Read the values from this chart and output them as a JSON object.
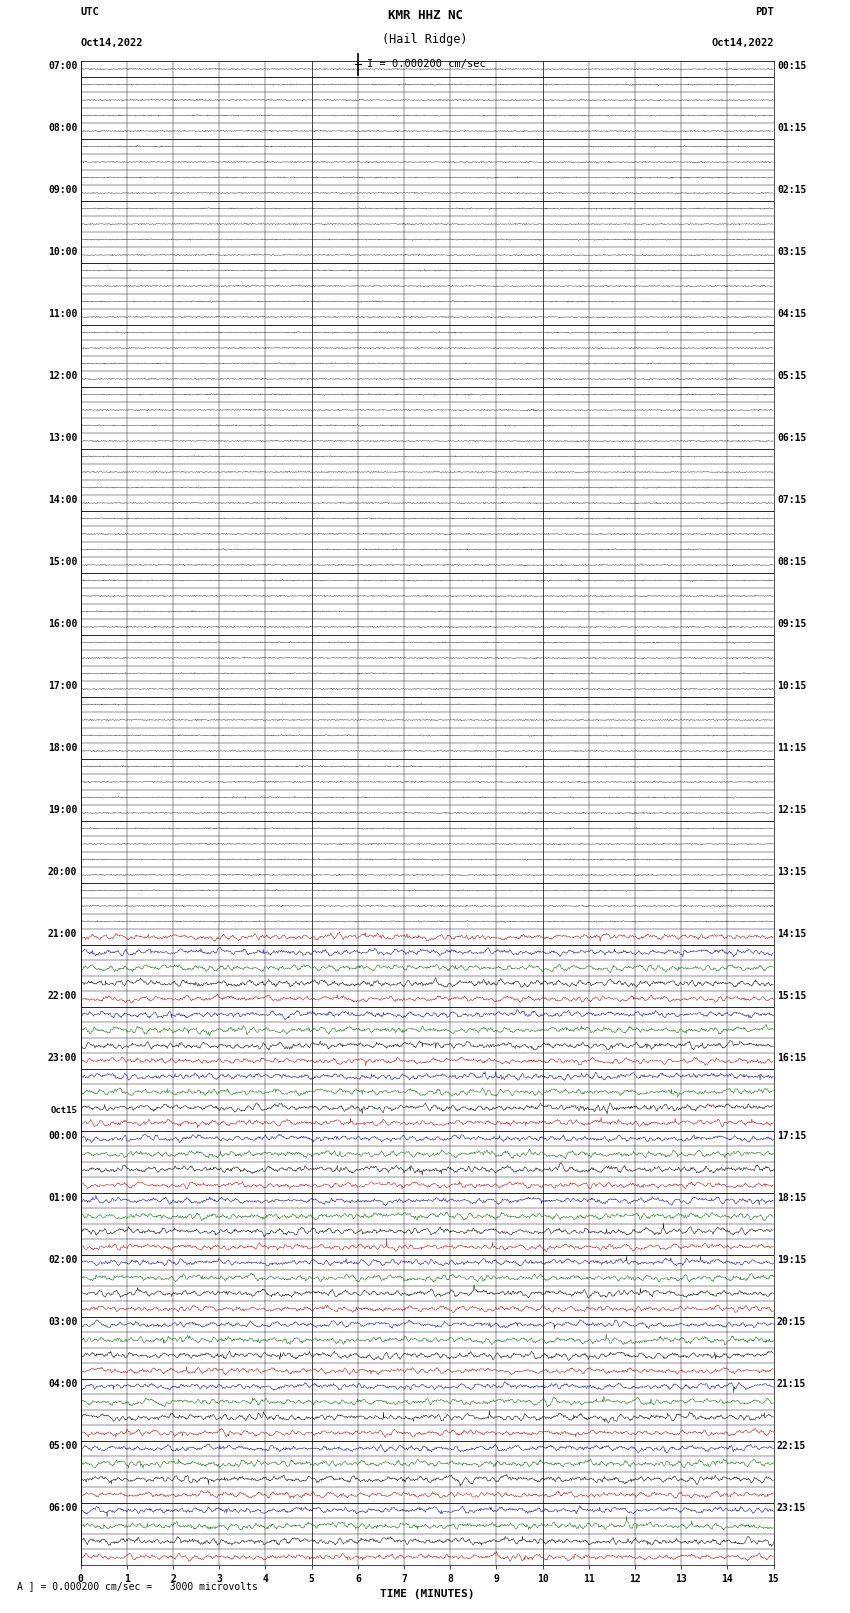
{
  "title_line1": "KMR HHZ NC",
  "title_line2": "(Hail Ridge)",
  "scale_label": "I = 0.000200 cm/sec",
  "left_label_top": "UTC",
  "left_label_date": "Oct14,2022",
  "right_label_top": "PDT",
  "right_label_date": "Oct14,2022",
  "bottom_label": "TIME (MINUTES)",
  "bottom_note": "A ] = 0.000200 cm/sec =   3000 microvolts",
  "n_cols": 15,
  "background_color": "#ffffff",
  "utc_row_labels": {
    "0": "07:00",
    "4": "08:00",
    "8": "09:00",
    "12": "10:00",
    "16": "11:00",
    "20": "12:00",
    "24": "13:00",
    "28": "14:00",
    "32": "15:00",
    "36": "16:00",
    "40": "17:00",
    "44": "18:00",
    "48": "19:00",
    "52": "20:00",
    "56": "21:00",
    "60": "22:00",
    "64": "23:00",
    "68": "Oct15",
    "69": "00:00",
    "73": "01:00",
    "77": "02:00",
    "81": "03:00",
    "85": "04:00",
    "89": "05:00",
    "93": "06:00"
  },
  "pdt_row_labels": {
    "0": "00:15",
    "4": "01:15",
    "8": "02:15",
    "12": "03:15",
    "16": "04:15",
    "20": "05:15",
    "24": "06:15",
    "28": "07:15",
    "32": "08:15",
    "36": "09:15",
    "40": "10:15",
    "44": "11:15",
    "48": "12:15",
    "52": "13:15",
    "56": "14:15",
    "60": "15:15",
    "64": "16:15",
    "69": "17:15",
    "73": "18:15",
    "77": "19:15",
    "81": "20:15",
    "85": "21:15",
    "89": "22:15",
    "93": "23:15"
  },
  "quiet_rows_count": 56,
  "total_rows": 97,
  "active_colors_cycle": [
    "#cc0000",
    "#0000cc",
    "#007700",
    "#000000"
  ]
}
